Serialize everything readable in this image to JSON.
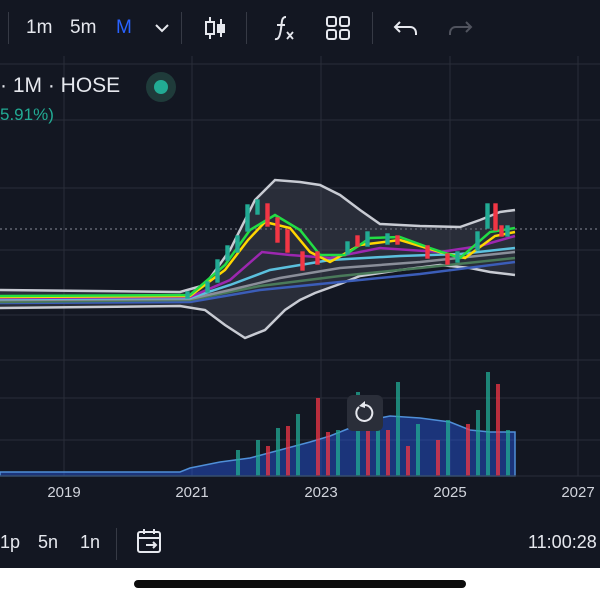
{
  "toolbar": {
    "intervals": [
      "1m",
      "5m",
      "M"
    ],
    "active_interval": "M",
    "icons": [
      "chevron-down-icon",
      "candles-icon",
      "indicators-fx-icon",
      "layout-grid-icon",
      "undo-icon",
      "redo-icon"
    ]
  },
  "legend": {
    "title": "· 1M · HOSE",
    "status_color": "#22ab94",
    "change": "5.91%)"
  },
  "chart_data": {
    "type": "candlestick",
    "x_ticks": [
      "2019",
      "2021",
      "2023",
      "2025",
      "2027"
    ],
    "series": [
      {
        "name": "price",
        "color": "#22ab94"
      },
      {
        "name": "volume",
        "color": "#2962ff"
      }
    ],
    "grid": true
  },
  "bottom_bar": {
    "ranges": [
      "1p",
      "5n",
      "1n"
    ],
    "time": "11:00:28"
  },
  "colors": {
    "up": "#22ab94",
    "down": "#f23645",
    "accent": "#2962ff",
    "background": "#131722"
  }
}
